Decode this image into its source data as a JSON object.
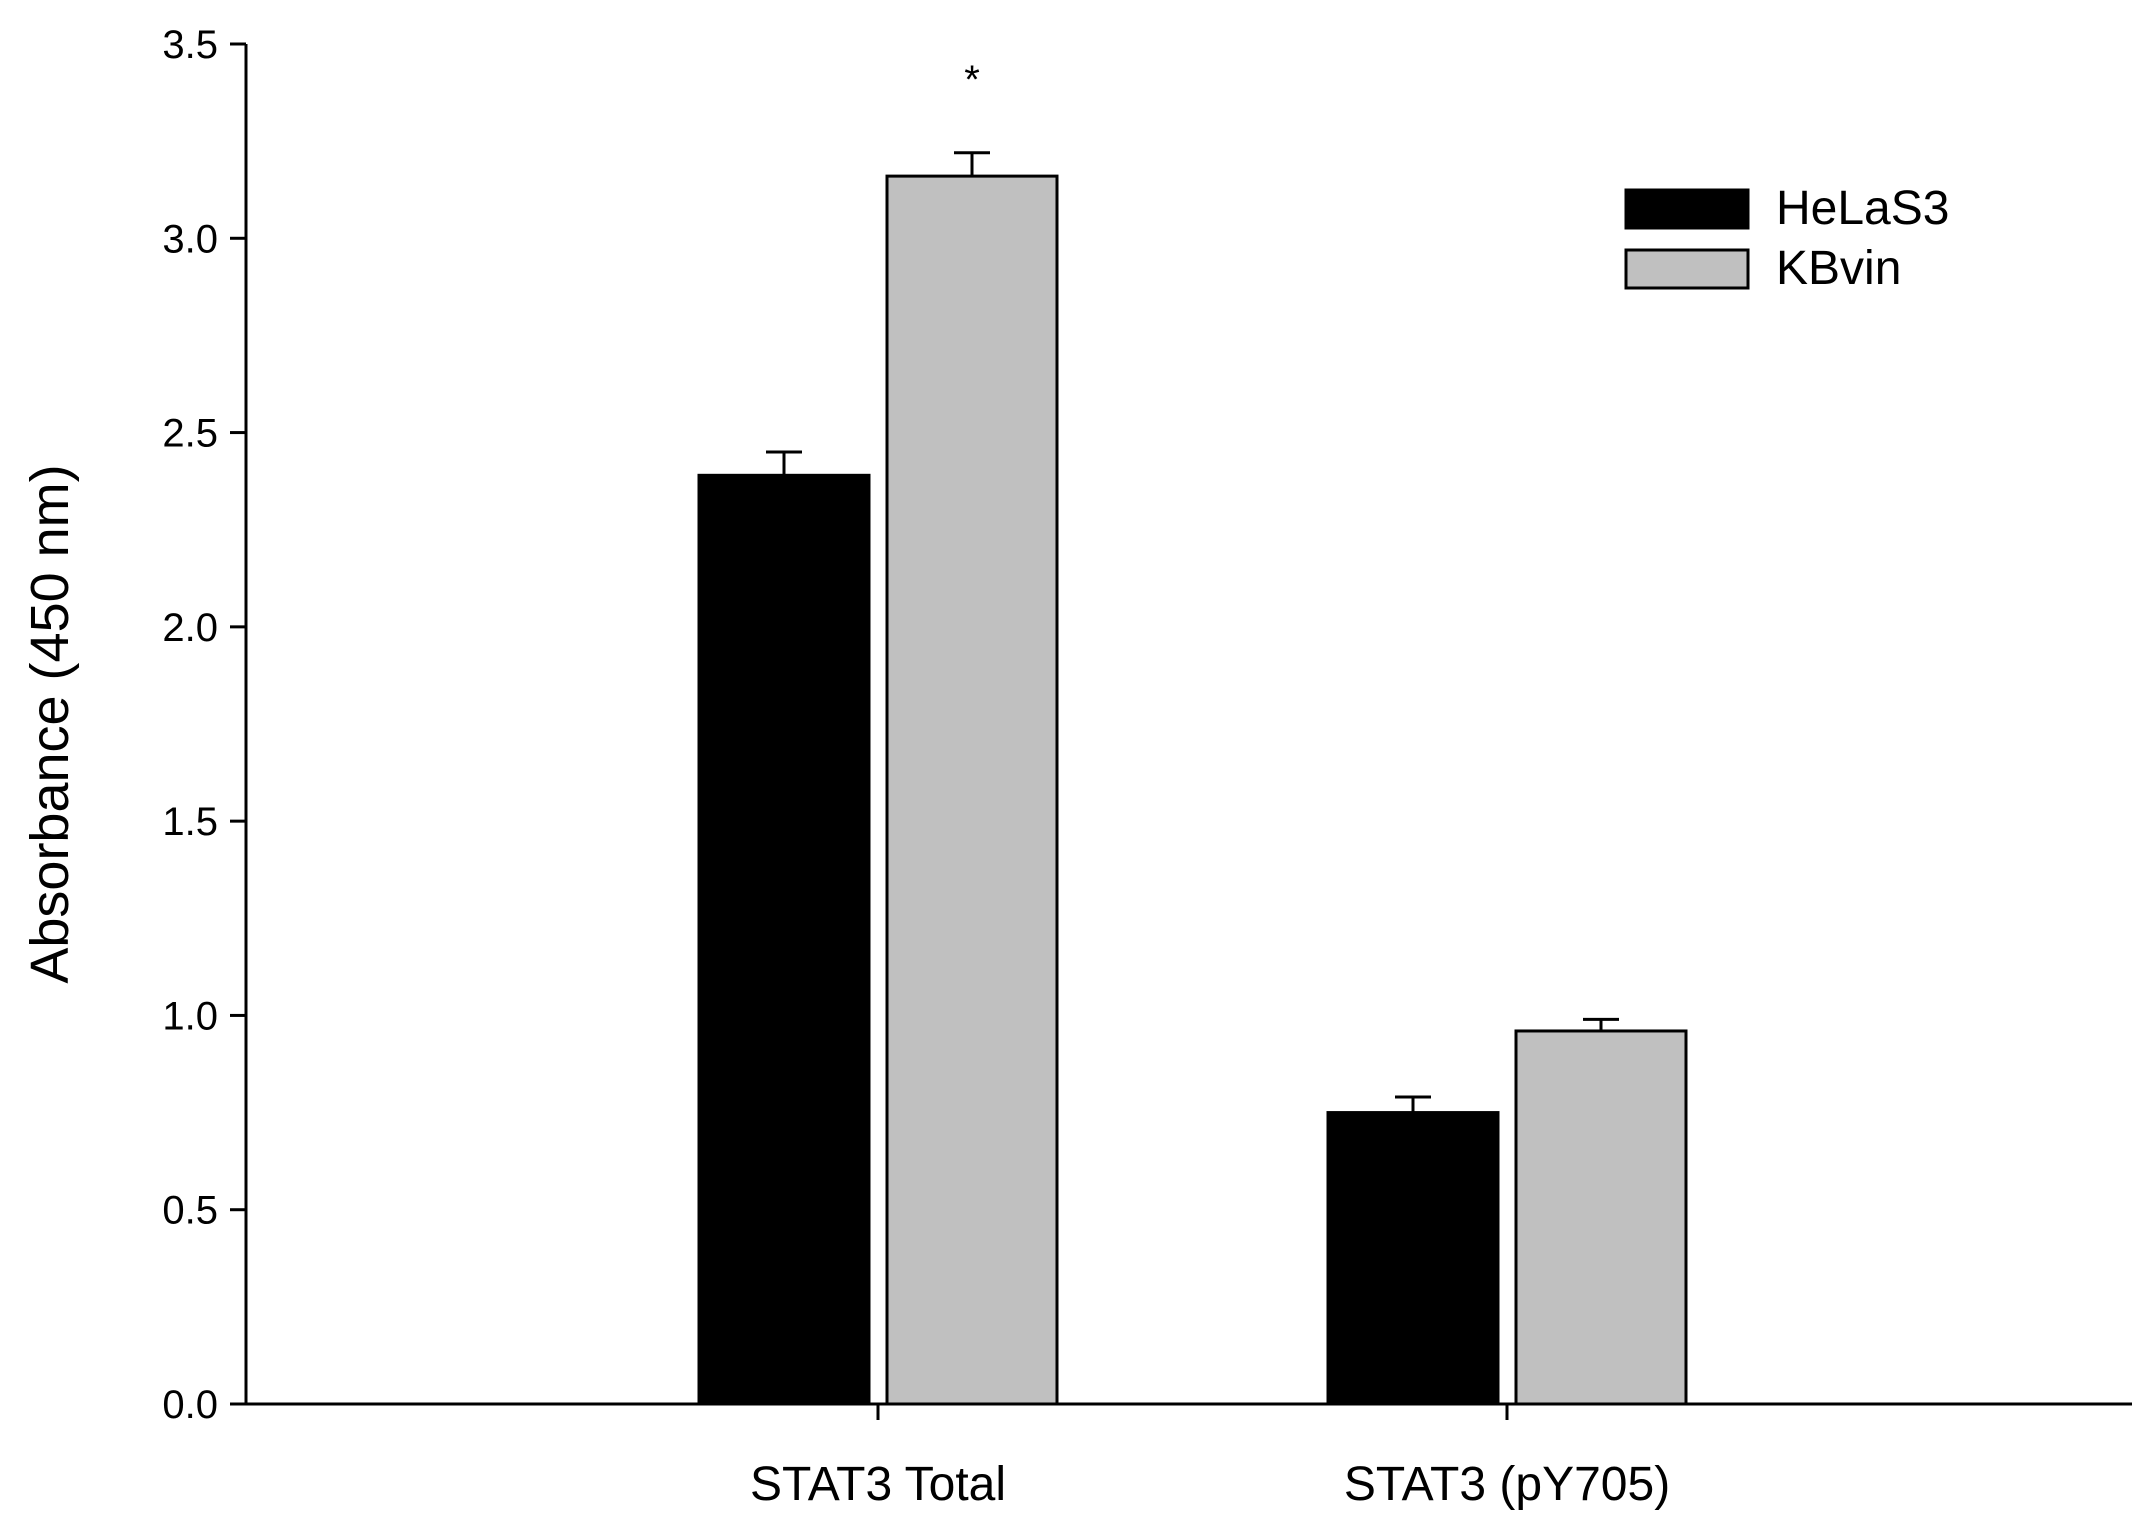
{
  "chart_data": {
    "type": "bar",
    "title": "",
    "xlabel": "",
    "ylabel": "Absorbance (450 nm)",
    "ylim": [
      0,
      3.5
    ],
    "yticks": [
      "0.0",
      "0.5",
      "1.0",
      "1.5",
      "2.0",
      "2.5",
      "3.0",
      "3.5"
    ],
    "categories": [
      "STAT3 Total",
      "STAT3 (pY705)"
    ],
    "series": [
      {
        "name": "HeLaS3",
        "color": "#000000",
        "values": [
          2.39,
          0.75
        ],
        "errors": [
          0.06,
          0.04
        ]
      },
      {
        "name": "KBvin",
        "color": "#c0c0c0",
        "values": [
          3.16,
          0.96
        ],
        "errors": [
          0.06,
          0.03
        ]
      }
    ],
    "annotations": [
      {
        "text": "*",
        "category": "STAT3 Total",
        "series": "KBvin"
      }
    ],
    "legend_position": "top-right",
    "grid": false
  }
}
